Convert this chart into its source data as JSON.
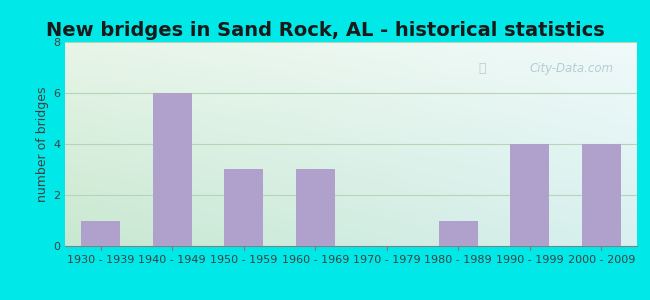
{
  "title": "New bridges in Sand Rock, AL - historical statistics",
  "categories": [
    "1930 - 1939",
    "1940 - 1949",
    "1950 - 1959",
    "1960 - 1969",
    "1970 - 1979",
    "1980 - 1989",
    "1990 - 1999",
    "2000 - 2009"
  ],
  "values": [
    1,
    6,
    3,
    3,
    0,
    1,
    4,
    4
  ],
  "bar_color": "#b0a0cc",
  "ylabel": "number of bridges",
  "ylim": [
    0,
    8
  ],
  "yticks": [
    0,
    2,
    4,
    6,
    8
  ],
  "background_outer": "#00e8e8",
  "background_grad_topleft": "#d8efd8",
  "background_grad_topright": "#e8f8f8",
  "background_grad_bottomleft": "#c8e8d0",
  "background_grad_bottomright": "#d8f0f0",
  "grid_color": "#c0d8c0",
  "title_fontsize": 14,
  "axis_label_fontsize": 9,
  "tick_fontsize": 8,
  "watermark_text": "City-Data.com",
  "watermark_color": "#b0c8d0",
  "bottom_spine_color": "#808080"
}
